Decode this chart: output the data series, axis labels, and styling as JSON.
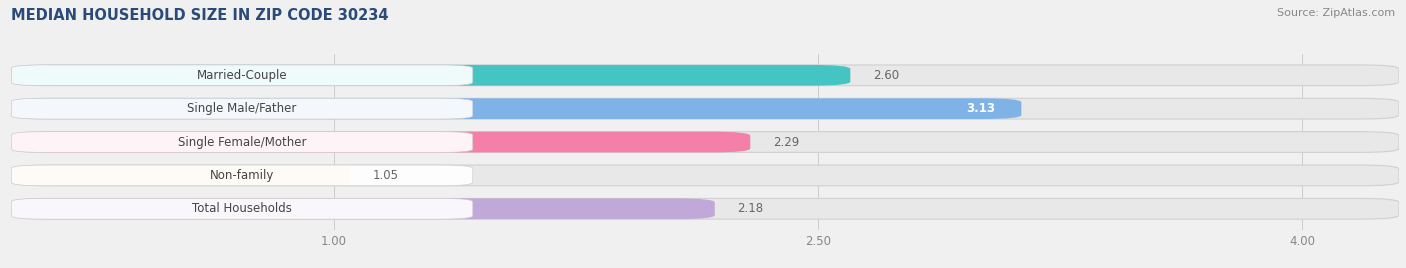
{
  "title": "MEDIAN HOUSEHOLD SIZE IN ZIP CODE 30234",
  "source": "Source: ZipAtlas.com",
  "categories": [
    "Married-Couple",
    "Single Male/Father",
    "Single Female/Mother",
    "Non-family",
    "Total Households"
  ],
  "values": [
    2.6,
    3.13,
    2.29,
    1.05,
    2.18
  ],
  "bar_colors": [
    "#45c4c4",
    "#7fb3e8",
    "#f47fa8",
    "#f5c896",
    "#c0a8d8"
  ],
  "bar_edge_colors": [
    "#45c4c4",
    "#7fb3e8",
    "#f47fa8",
    "#f5c896",
    "#c0a8d8"
  ],
  "value_inside_bar": [
    false,
    true,
    false,
    false,
    false
  ],
  "value_colors": [
    "#666666",
    "#ffffff",
    "#666666",
    "#666666",
    "#666666"
  ],
  "xlim": [
    0,
    4.3
  ],
  "xmin": 0,
  "xmax": 4.3,
  "xticks": [
    1.0,
    2.5,
    4.0
  ],
  "bar_height": 0.62,
  "bar_gap": 0.38,
  "label_fontsize": 8.5,
  "value_fontsize": 8.5,
  "title_fontsize": 10.5,
  "source_fontsize": 8,
  "bg_color": "#f0f0f0",
  "bar_bg_color": "#e8e8e8",
  "title_color": "#2a4a7a",
  "source_color": "#888888"
}
